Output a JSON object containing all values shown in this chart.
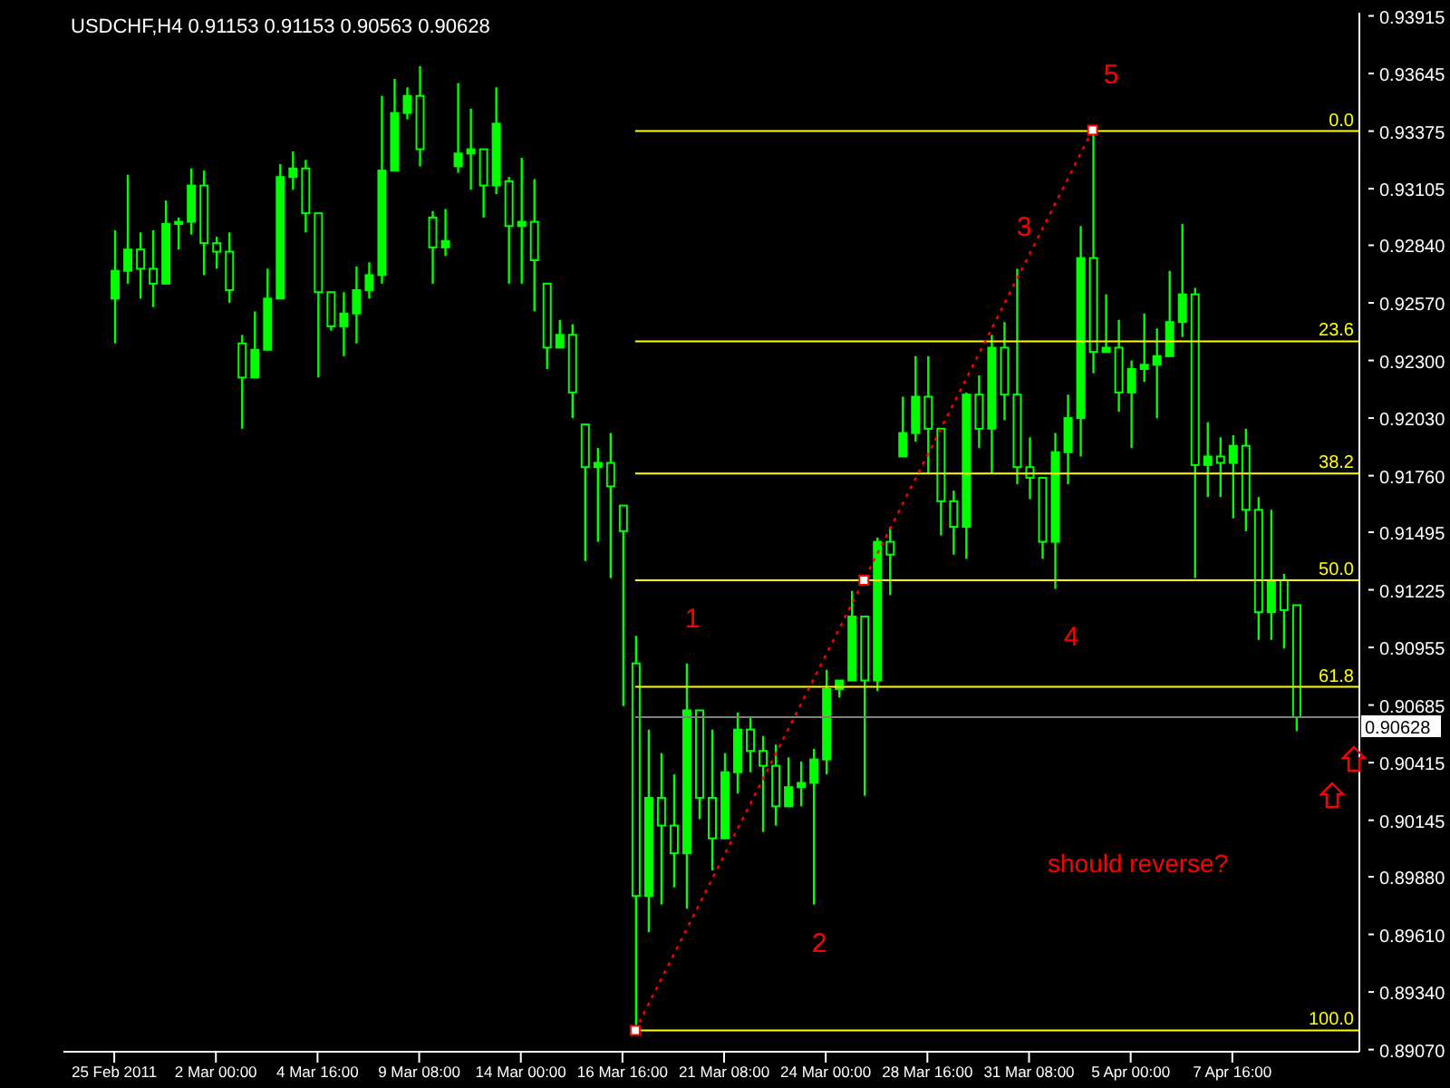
{
  "chart_data": {
    "type": "candlestick",
    "title": "USDCHF,H4 0.91153 0.91153 0.90563 0.90628",
    "categories": [
      "25 Feb 2011",
      null,
      null,
      null,
      null,
      null,
      null,
      null,
      "2 Mar 00:00",
      null,
      null,
      null,
      null,
      null,
      null,
      null,
      "4 Mar 16:00",
      null,
      null,
      null,
      null,
      null,
      null,
      null,
      "9 Mar 08:00",
      null,
      null,
      null,
      null,
      null,
      null,
      null,
      "14 Mar 00:00",
      null,
      null,
      null,
      null,
      null,
      null,
      null,
      "16 Mar 16:00",
      null,
      null,
      null,
      null,
      null,
      null,
      null,
      "21 Mar 08:00",
      null,
      null,
      null,
      null,
      null,
      null,
      null,
      "24 Mar 00:00",
      null,
      null,
      null,
      null,
      null,
      null,
      null,
      "28 Mar 16:00",
      null,
      null,
      null,
      null,
      null,
      null,
      null,
      "31 Mar 08:00",
      null,
      null,
      null,
      null,
      null,
      null,
      null,
      "5 Apr 00:00",
      null,
      null,
      null,
      null,
      null,
      null,
      null,
      "7 Apr 16:00",
      null,
      null,
      null,
      null,
      null
    ],
    "color": "#00ff00",
    "ohlc": [
      [
        0.9259,
        0.9291,
        0.9238,
        0.9272
      ],
      [
        0.9272,
        0.9317,
        0.9266,
        0.9282
      ],
      [
        0.9282,
        0.929,
        0.9259,
        0.9273
      ],
      [
        0.9273,
        0.9291,
        0.9255,
        0.9266
      ],
      [
        0.9266,
        0.9305,
        0.9266,
        0.9294
      ],
      [
        0.9294,
        0.9297,
        0.9282,
        0.9295
      ],
      [
        0.9295,
        0.932,
        0.9289,
        0.9312
      ],
      [
        0.9312,
        0.9319,
        0.927,
        0.9285
      ],
      [
        0.9285,
        0.9288,
        0.9273,
        0.9281
      ],
      [
        0.9281,
        0.929,
        0.9257,
        0.9263
      ],
      [
        0.9238,
        0.9242,
        0.9198,
        0.9222
      ],
      [
        0.9222,
        0.9253,
        0.9222,
        0.9235
      ],
      [
        0.9235,
        0.9273,
        0.9235,
        0.9259
      ],
      [
        0.9259,
        0.9322,
        0.9259,
        0.9316
      ],
      [
        0.9316,
        0.9328,
        0.931,
        0.932
      ],
      [
        0.932,
        0.9324,
        0.929,
        0.9299
      ],
      [
        0.9299,
        0.9299,
        0.9222,
        0.9262
      ],
      [
        0.9262,
        0.9262,
        0.9244,
        0.9246
      ],
      [
        0.9246,
        0.9262,
        0.9232,
        0.9252
      ],
      [
        0.9252,
        0.9274,
        0.9238,
        0.9263
      ],
      [
        0.9263,
        0.9276,
        0.9259,
        0.927
      ],
      [
        0.927,
        0.9354,
        0.9266,
        0.9319
      ],
      [
        0.9319,
        0.9362,
        0.9319,
        0.9346
      ],
      [
        0.9346,
        0.9358,
        0.9343,
        0.9354
      ],
      [
        0.9354,
        0.9368,
        0.9321,
        0.9329
      ],
      [
        0.9297,
        0.93,
        0.9266,
        0.9283
      ],
      [
        0.9283,
        0.9301,
        0.9279,
        0.9286
      ],
      [
        0.9321,
        0.936,
        0.9318,
        0.9327
      ],
      [
        0.9327,
        0.9348,
        0.931,
        0.9329
      ],
      [
        0.9329,
        0.9329,
        0.9297,
        0.9312
      ],
      [
        0.9312,
        0.9358,
        0.9308,
        0.9341
      ],
      [
        0.9314,
        0.9316,
        0.9266,
        0.9293
      ],
      [
        0.9293,
        0.9325,
        0.9266,
        0.9295
      ],
      [
        0.9295,
        0.9315,
        0.9253,
        0.9277
      ],
      [
        0.9266,
        0.9266,
        0.9226,
        0.9236
      ],
      [
        0.9236,
        0.9249,
        0.9236,
        0.9242
      ],
      [
        0.9242,
        0.9247,
        0.9203,
        0.9215
      ],
      [
        0.92,
        0.92,
        0.9136,
        0.918
      ],
      [
        0.918,
        0.9189,
        0.9145,
        0.9182
      ],
      [
        0.9182,
        0.9196,
        0.9128,
        0.9171
      ],
      [
        0.9162,
        0.9162,
        0.9068,
        0.915
      ],
      [
        0.9088,
        0.9101,
        0.8916,
        0.8979
      ],
      [
        0.8979,
        0.9057,
        0.8962,
        0.9025
      ],
      [
        0.9025,
        0.9046,
        0.8975,
        0.9012
      ],
      [
        0.9012,
        0.9036,
        0.8983,
        0.8999
      ],
      [
        0.8999,
        0.9088,
        0.8973,
        0.9066
      ],
      [
        0.9066,
        0.9066,
        0.9015,
        0.9025
      ],
      [
        0.9025,
        0.9057,
        0.8991,
        0.9006
      ],
      [
        0.9006,
        0.9046,
        0.9006,
        0.9037
      ],
      [
        0.9037,
        0.9065,
        0.9027,
        0.9057
      ],
      [
        0.9057,
        0.9063,
        0.9037,
        0.9047
      ],
      [
        0.9047,
        0.9054,
        0.9009,
        0.904
      ],
      [
        0.904,
        0.905,
        0.9012,
        0.9021
      ],
      [
        0.9021,
        0.9044,
        0.9021,
        0.903
      ],
      [
        0.903,
        0.9042,
        0.9021,
        0.9032
      ],
      [
        0.9032,
        0.9048,
        0.8975,
        0.9043
      ],
      [
        0.9043,
        0.9085,
        0.9036,
        0.9076
      ],
      [
        0.9076,
        0.908,
        0.9072,
        0.908
      ],
      [
        0.908,
        0.9122,
        0.908,
        0.911
      ],
      [
        0.911,
        0.911,
        0.9026,
        0.908
      ],
      [
        0.908,
        0.9147,
        0.9075,
        0.9145
      ],
      [
        0.9145,
        0.9152,
        0.912,
        0.9139
      ],
      [
        0.9185,
        0.9213,
        0.9185,
        0.9196
      ],
      [
        0.9196,
        0.9232,
        0.9192,
        0.9213
      ],
      [
        0.9213,
        0.9232,
        0.9177,
        0.9198
      ],
      [
        0.9198,
        0.9198,
        0.9148,
        0.9164
      ],
      [
        0.9164,
        0.9169,
        0.9139,
        0.9152
      ],
      [
        0.9152,
        0.9215,
        0.9137,
        0.9214
      ],
      [
        0.9214,
        0.9223,
        0.9189,
        0.9198
      ],
      [
        0.9198,
        0.9242,
        0.9177,
        0.9236
      ],
      [
        0.9236,
        0.9248,
        0.9202,
        0.9214
      ],
      [
        0.9214,
        0.9273,
        0.9172,
        0.918
      ],
      [
        0.918,
        0.9194,
        0.9165,
        0.9175
      ],
      [
        0.9175,
        0.9175,
        0.9137,
        0.9145
      ],
      [
        0.9145,
        0.9196,
        0.9123,
        0.9187
      ],
      [
        0.9187,
        0.9214,
        0.9172,
        0.9203
      ],
      [
        0.9203,
        0.9293,
        0.9185,
        0.9278
      ],
      [
        0.9278,
        0.93375,
        0.9224,
        0.9234
      ],
      [
        0.9234,
        0.9261,
        0.9234,
        0.9236
      ],
      [
        0.9236,
        0.9249,
        0.9206,
        0.9215
      ],
      [
        0.9215,
        0.923,
        0.9189,
        0.9226
      ],
      [
        0.9226,
        0.9252,
        0.922,
        0.9228
      ],
      [
        0.9228,
        0.9245,
        0.9203,
        0.9232
      ],
      [
        0.9232,
        0.9272,
        0.9232,
        0.9248
      ],
      [
        0.9248,
        0.9294,
        0.9241,
        0.9261
      ],
      [
        0.9261,
        0.9264,
        0.9128,
        0.9181
      ],
      [
        0.9181,
        0.9201,
        0.9166,
        0.9185
      ],
      [
        0.9185,
        0.9194,
        0.9166,
        0.9182
      ],
      [
        0.9182,
        0.9195,
        0.9156,
        0.919
      ],
      [
        0.919,
        0.9198,
        0.915,
        0.916
      ],
      [
        0.916,
        0.9166,
        0.9099,
        0.9112
      ],
      [
        0.9112,
        0.916,
        0.9099,
        0.9127
      ],
      [
        0.9127,
        0.913,
        0.9095,
        0.9113
      ],
      [
        0.91153,
        0.91153,
        0.90563,
        0.90628
      ]
    ],
    "series": [
      {
        "type": "line",
        "color": "#ff0000",
        "marker": "square",
        "line_style": "dotted",
        "values": [
          null,
          null,
          null,
          null,
          null,
          null,
          null,
          null,
          null,
          null,
          null,
          null,
          null,
          null,
          null,
          null,
          null,
          null,
          null,
          null,
          null,
          null,
          null,
          null,
          null,
          null,
          null,
          null,
          null,
          null,
          null,
          null,
          null,
          null,
          null,
          null,
          null,
          null,
          null,
          null,
          null,
          0.8916,
          null,
          null,
          null,
          null,
          null,
          null,
          null,
          null,
          null,
          null,
          null,
          null,
          null,
          null,
          null,
          null,
          null,
          0.9127,
          null,
          null,
          null,
          null,
          null,
          null,
          null,
          null,
          null,
          null,
          null,
          null,
          null,
          null,
          null,
          null,
          null,
          0.9338,
          null,
          null,
          null,
          null,
          null,
          null,
          null,
          null,
          null,
          null,
          null,
          null,
          null,
          null,
          null,
          null
        ]
      }
    ],
    "ylim": [
      0.8906,
      0.9393
    ],
    "yticks": [
      0.93915,
      0.93645,
      0.93375,
      0.93105,
      {
        "value": 0.9284,
        "label": "0.92840"
      },
      {
        "value": 0.9257,
        "label": "0.92570"
      },
      {
        "value": 0.923,
        "label": "0.92300"
      },
      {
        "value": 0.9203,
        "label": "0.92030"
      },
      {
        "value": 0.9176,
        "label": "0.91760"
      },
      0.91495,
      0.91225,
      0.90955,
      0.90685,
      0.90415,
      0.90145,
      {
        "value": 0.8988,
        "label": "0.89880"
      },
      {
        "value": 0.8961,
        "label": "0.89610"
      },
      {
        "value": 0.8934,
        "label": "0.89340"
      },
      {
        "value": 0.8907,
        "label": "0.89070"
      }
    ],
    "ref_lines": [
      {
        "axis": "y",
        "value": 0.93375,
        "color": "#ffff00"
      },
      {
        "axis": "y",
        "value": 0.9239,
        "color": "#ffff00"
      },
      {
        "axis": "y",
        "value": 0.9177,
        "color": "#ffff00"
      },
      {
        "axis": "y",
        "value": 0.9127,
        "color": "#ffff00"
      },
      {
        "axis": "y",
        "value": 0.9077,
        "color": "#ffff00"
      },
      {
        "axis": "y",
        "value": 0.8916,
        "color": "#ffff00"
      },
      {
        "axis": "y",
        "value": 0.90628,
        "label": "0.90628",
        "color": "#808080"
      }
    ],
    "annotations": [
      "1",
      "2",
      "3",
      "4",
      "5",
      "should reverse?",
      {
        "text": "0.0",
        "y": 0.93375
      },
      {
        "text": "23.6",
        "y": 0.9239
      },
      {
        "text": "38.2",
        "y": 0.9177
      },
      {
        "text": "50.0",
        "y": 0.9127
      },
      {
        "text": "61.8",
        "y": 0.9077
      },
      {
        "text": "100.0",
        "y": 0.8916
      }
    ]
  }
}
